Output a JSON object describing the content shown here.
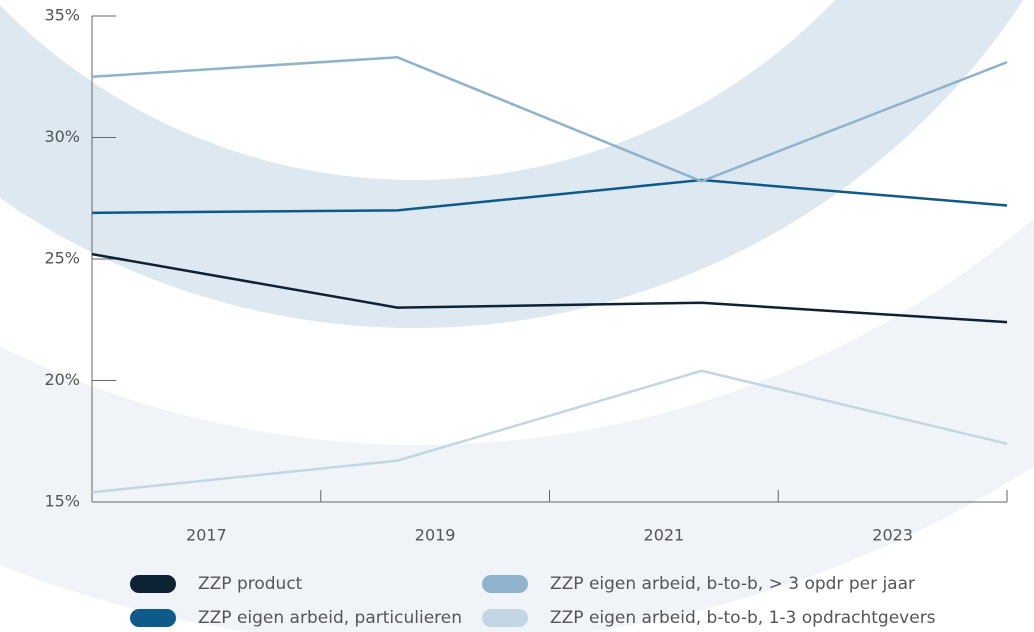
{
  "chart_data": {
    "type": "line",
    "x": [
      2016,
      2018.67,
      2021.33,
      2024
    ],
    "xlim": [
      2016,
      2024
    ],
    "xticks": [
      2017,
      2019,
      2021,
      2023
    ],
    "ylim": [
      15,
      35
    ],
    "yticks": [
      {
        "value": 15,
        "label": "15%"
      },
      {
        "value": 20,
        "label": "20%"
      },
      {
        "value": 25,
        "label": "25%"
      },
      {
        "value": 30,
        "label": "30%"
      },
      {
        "value": 35,
        "label": "35%"
      }
    ],
    "series": [
      {
        "name": "ZZP product",
        "color": "#0d2233",
        "values": [
          25.2,
          23.0,
          23.2,
          22.4
        ]
      },
      {
        "name": "ZZP eigen arbeid, particulieren",
        "color": "#0e5a8a",
        "values": [
          26.9,
          27.0,
          28.25,
          27.2
        ]
      },
      {
        "name": "ZZP eigen arbeid, b-to-b, > 3 opdr per jaar",
        "color": "#8fb3cc",
        "values": [
          32.5,
          33.3,
          28.2,
          33.1
        ]
      },
      {
        "name": "ZZP eigen arbeid, b-to-b, 1-3 opdrachtgevers",
        "color": "#c2d6e4",
        "values": [
          15.4,
          16.7,
          20.4,
          17.4
        ]
      }
    ]
  }
}
